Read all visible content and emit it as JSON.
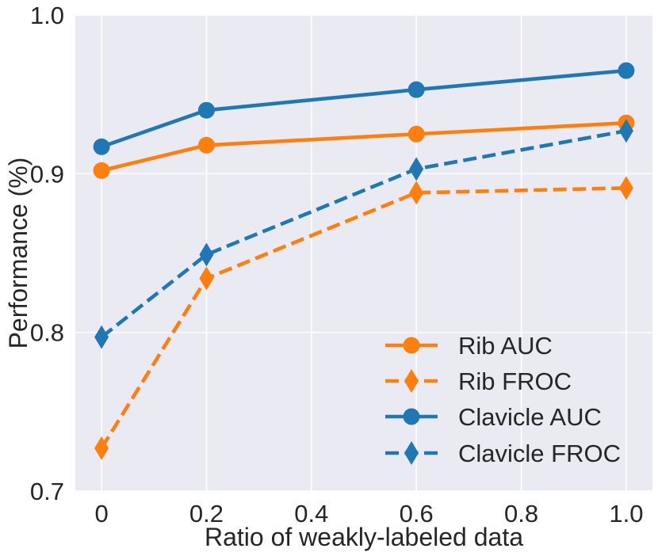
{
  "chart_data": {
    "type": "line",
    "title": "",
    "xlabel": "Ratio of weakly-labeled data",
    "ylabel": "Performance (%)",
    "xlim": [
      -0.05,
      1.05
    ],
    "ylim": [
      0.7,
      1.0
    ],
    "grid": true,
    "xticks": [
      0,
      0.2,
      0.4,
      0.6,
      0.8,
      1.0
    ],
    "xtick_labels": [
      "0",
      "0.2",
      "0.4",
      "0.6",
      "0.8",
      "1.0"
    ],
    "yticks": [
      0.7,
      0.8,
      0.9,
      1.0
    ],
    "ytick_labels": [
      "0.7",
      "0.8",
      "0.9",
      "1.0"
    ],
    "x": [
      0,
      0.2,
      0.6,
      1.0
    ],
    "legend_position": "lower-right",
    "series": [
      {
        "name": "Rib AUC",
        "values": [
          0.902,
          0.918,
          0.925,
          0.932
        ],
        "color": "#ff7f0e",
        "linestyle": "solid",
        "marker": "circle"
      },
      {
        "name": "Rib FROC",
        "values": [
          0.727,
          0.834,
          0.888,
          0.891
        ],
        "color": "#ff7f0e",
        "linestyle": "dashed",
        "marker": "diamond"
      },
      {
        "name": "Clavicle AUC",
        "values": [
          0.917,
          0.94,
          0.953,
          0.965
        ],
        "color": "#1f77b4",
        "linestyle": "solid",
        "marker": "circle"
      },
      {
        "name": "Clavicle FROC",
        "values": [
          0.797,
          0.849,
          0.903,
          0.927
        ],
        "color": "#1f77b4",
        "linestyle": "dashed",
        "marker": "diamond"
      }
    ]
  }
}
